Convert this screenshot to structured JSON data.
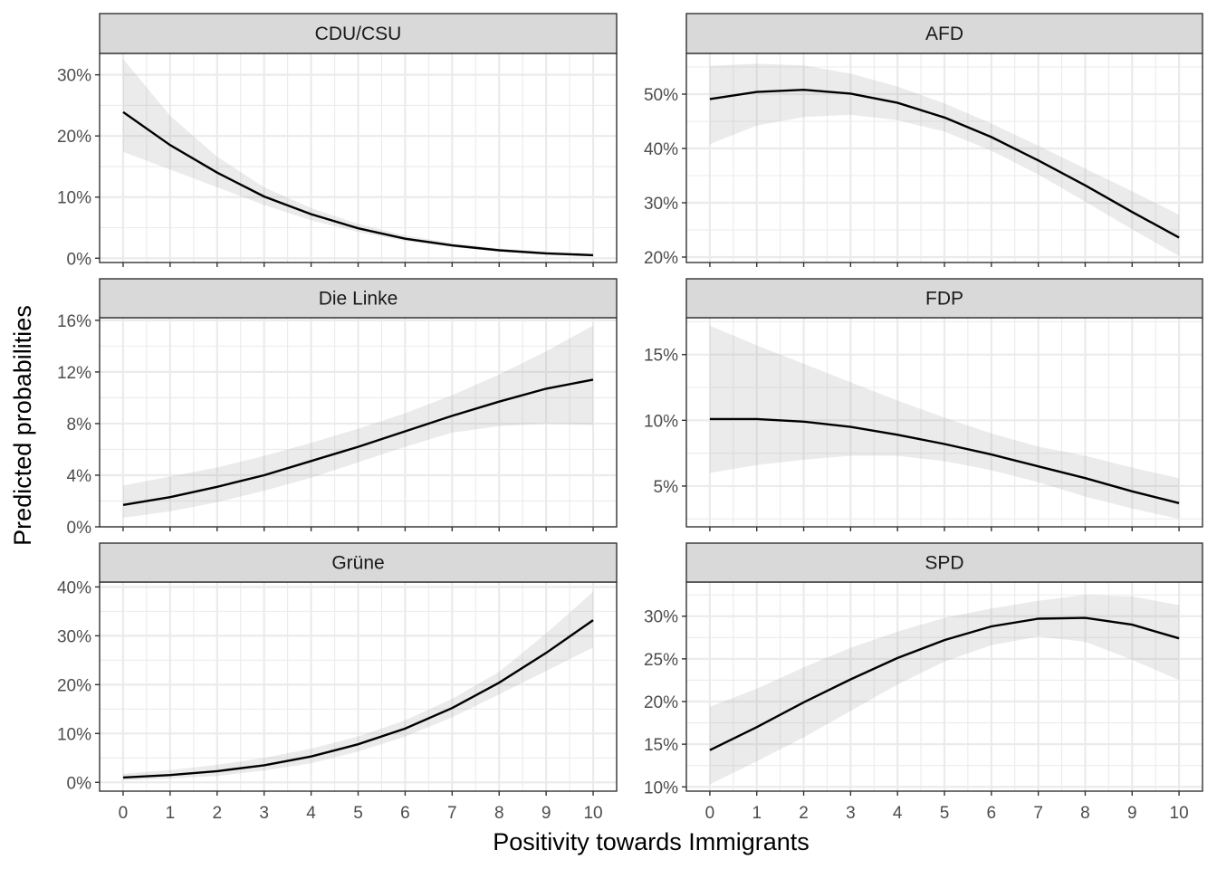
{
  "chart_data": {
    "type": "line",
    "facet_layout": "3 rows x 2 columns, free y scales",
    "grid": true,
    "xlabel": "Positivity towards Immigrants",
    "ylabel": "Predicted probabilities",
    "x": [
      0,
      1,
      2,
      3,
      4,
      5,
      6,
      7,
      8,
      9,
      10
    ],
    "x_ticks": [
      "0",
      "1",
      "2",
      "3",
      "4",
      "5",
      "6",
      "7",
      "8",
      "9",
      "10"
    ],
    "xlim": [
      -0.5,
      10.5
    ],
    "colors": {
      "line": "#000000",
      "ribbon": "#999999",
      "strip": "#d9d9d9",
      "grid": "#ebebeb"
    },
    "panels": [
      {
        "name": "CDU/CSU",
        "ylim": [
          -0.7,
          33.5
        ],
        "y_ticks": [
          0,
          10,
          20,
          30
        ],
        "y_tick_labels": [
          "0%",
          "10%",
          "20%",
          "30%"
        ],
        "values": [
          23.9,
          18.5,
          14.0,
          10.1,
          7.2,
          4.9,
          3.2,
          2.1,
          1.3,
          0.8,
          0.5
        ],
        "lower": [
          17.4,
          14.5,
          11.6,
          8.7,
          6.2,
          4.3,
          2.8,
          1.8,
          1.1,
          0.6,
          0.3
        ],
        "upper": [
          32.6,
          23.3,
          16.6,
          11.6,
          8.2,
          5.6,
          3.7,
          2.5,
          1.6,
          1.1,
          0.8
        ]
      },
      {
        "name": "AFD",
        "ylim": [
          19.0,
          57.5
        ],
        "y_ticks": [
          20,
          30,
          40,
          50
        ],
        "y_tick_labels": [
          "20%",
          "30%",
          "40%",
          "50%"
        ],
        "values": [
          49.1,
          50.4,
          50.8,
          50.1,
          48.4,
          45.7,
          42.1,
          37.8,
          33.2,
          28.3,
          23.6
        ],
        "lower": [
          40.8,
          44.2,
          45.8,
          46.2,
          45.2,
          43.1,
          39.6,
          35.2,
          30.2,
          25.1,
          20.2
        ],
        "upper": [
          55.2,
          55.6,
          55.3,
          53.8,
          51.4,
          48.3,
          44.6,
          40.5,
          36.3,
          32.1,
          27.8
        ]
      },
      {
        "name": "Die Linke",
        "ylim": [
          0,
          16.2
        ],
        "y_ticks": [
          0,
          4,
          8,
          12,
          16
        ],
        "y_tick_labels": [
          "0%",
          "4%",
          "8%",
          "12%",
          "16%"
        ],
        "values": [
          1.7,
          2.3,
          3.1,
          4.0,
          5.1,
          6.2,
          7.4,
          8.6,
          9.7,
          10.7,
          11.4
        ],
        "lower": [
          0.7,
          1.2,
          1.9,
          2.8,
          3.8,
          5.0,
          6.2,
          7.3,
          7.8,
          8.0,
          7.9
        ],
        "upper": [
          3.2,
          3.9,
          4.6,
          5.5,
          6.5,
          7.6,
          8.8,
          10.2,
          11.8,
          13.6,
          15.6
        ]
      },
      {
        "name": "FDP",
        "ylim": [
          1.9,
          17.8
        ],
        "y_ticks": [
          5,
          10,
          15
        ],
        "y_tick_labels": [
          "5%",
          "10%",
          "15%"
        ],
        "values": [
          10.1,
          10.1,
          9.9,
          9.5,
          8.9,
          8.2,
          7.4,
          6.5,
          5.6,
          4.6,
          3.7
        ],
        "lower": [
          6.0,
          6.6,
          7.0,
          7.3,
          7.3,
          6.9,
          6.2,
          5.3,
          4.2,
          3.3,
          2.5
        ],
        "upper": [
          17.2,
          15.7,
          14.3,
          12.9,
          11.5,
          10.2,
          9.0,
          8.0,
          7.3,
          6.4,
          5.6
        ]
      },
      {
        "name": "Grüne",
        "ylim": [
          -1.8,
          41.0
        ],
        "y_ticks": [
          0,
          10,
          20,
          30,
          40
        ],
        "y_tick_labels": [
          "0%",
          "10%",
          "20%",
          "30%",
          "40%"
        ],
        "values": [
          1.0,
          1.5,
          2.3,
          3.5,
          5.3,
          7.8,
          11.0,
          15.2,
          20.4,
          26.5,
          33.2
        ],
        "lower": [
          0.4,
          0.8,
          1.3,
          2.4,
          3.9,
          6.3,
          9.4,
          13.3,
          18.0,
          22.8,
          27.6
        ],
        "upper": [
          1.8,
          2.5,
          3.6,
          5.0,
          6.9,
          9.4,
          12.7,
          17.1,
          22.6,
          30.5,
          39.0
        ]
      },
      {
        "name": "SPD",
        "ylim": [
          9.5,
          34.0
        ],
        "y_ticks": [
          10,
          15,
          20,
          25,
          30
        ],
        "y_tick_labels": [
          "10%",
          "15%",
          "20%",
          "25%",
          "30%"
        ],
        "values": [
          14.3,
          17.0,
          19.9,
          22.6,
          25.1,
          27.2,
          28.8,
          29.7,
          29.8,
          29.0,
          27.4
        ],
        "lower": [
          10.3,
          13.0,
          15.8,
          18.9,
          22.0,
          24.7,
          26.6,
          27.6,
          27.0,
          24.9,
          22.5
        ],
        "upper": [
          19.4,
          21.5,
          24.0,
          26.3,
          28.2,
          29.8,
          30.9,
          31.8,
          32.5,
          32.3,
          31.3
        ]
      }
    ]
  }
}
